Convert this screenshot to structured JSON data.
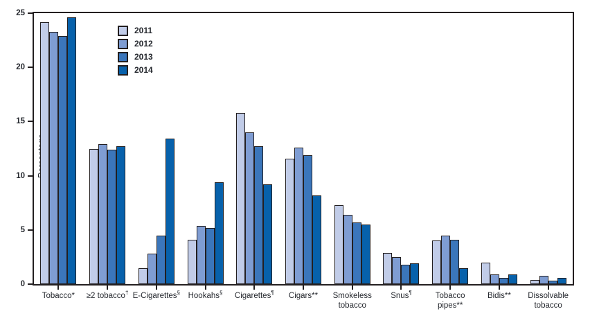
{
  "chart_data": {
    "type": "bar",
    "title": "",
    "xlabel": "",
    "ylabel": "Percentage",
    "ylim": [
      0,
      25
    ],
    "yticks": [
      0,
      5,
      10,
      15,
      20,
      25
    ],
    "grid": false,
    "legend_position": "upper-left-inside",
    "axis_color": "#231f20",
    "text_color": "#25282e",
    "categories": [
      {
        "lines": [
          "Tobacco*"
        ],
        "sup": ""
      },
      {
        "lines": [
          "≥2 tobacco"
        ],
        "sup": "†"
      },
      {
        "lines": [
          "E-Cigarettes"
        ],
        "sup": "§"
      },
      {
        "lines": [
          "Hookahs"
        ],
        "sup": "§"
      },
      {
        "lines": [
          "Cigarettes"
        ],
        "sup": "¶"
      },
      {
        "lines": [
          "Cigars**"
        ],
        "sup": ""
      },
      {
        "lines": [
          "Smokeless",
          "tobacco"
        ],
        "sup": ""
      },
      {
        "lines": [
          "Snus"
        ],
        "sup": "¶"
      },
      {
        "lines": [
          "Tobacco",
          "pipes**"
        ],
        "sup": ""
      },
      {
        "lines": [
          "Bidis**"
        ],
        "sup": ""
      },
      {
        "lines": [
          "Dissolvable",
          "tobacco"
        ],
        "sup": ""
      }
    ],
    "series": [
      {
        "name": "2011",
        "color": "#c1cce8",
        "values": [
          24.2,
          12.5,
          1.5,
          4.1,
          15.8,
          11.6,
          7.3,
          2.9,
          4.0,
          2.0,
          0.4
        ]
      },
      {
        "name": "2012",
        "color": "#7f9dd3",
        "values": [
          23.3,
          12.9,
          2.8,
          5.4,
          14.0,
          12.6,
          6.4,
          2.5,
          4.5,
          0.9,
          0.8
        ]
      },
      {
        "name": "2013",
        "color": "#3b76bb",
        "values": [
          22.9,
          12.4,
          4.5,
          5.2,
          12.7,
          11.9,
          5.7,
          1.8,
          4.1,
          0.6,
          0.3
        ]
      },
      {
        "name": "2014",
        "color": "#0761ab",
        "values": [
          24.6,
          12.7,
          13.4,
          9.4,
          9.2,
          8.2,
          5.5,
          1.9,
          1.5,
          0.9,
          0.6
        ]
      }
    ]
  }
}
